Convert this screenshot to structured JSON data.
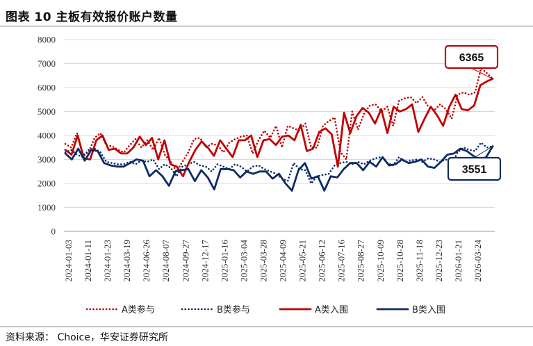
{
  "header": {
    "title": "图表 10 主板有效报价账户数量"
  },
  "footer": {
    "source": "资料来源：  Choice，华安证券研究所"
  },
  "colors": {
    "red": "#c00000",
    "navy": "#0c2a66",
    "grid": "#d9d9d9"
  },
  "chart_data": {
    "type": "line",
    "title": "",
    "xlabel": "",
    "ylabel": "",
    "ylim": [
      0,
      8000
    ],
    "yticks": [
      0,
      1000,
      2000,
      3000,
      4000,
      5000,
      6000,
      7000,
      8000
    ],
    "grid": "horizontal",
    "legend_position": "bottom",
    "xtick_labels": [
      "2024-01-03",
      "2024-01-11",
      "2024-01-23",
      "2024-03-19",
      "2024-06-26",
      "2024-08-07",
      "2024-09-27",
      "2024-12-17",
      "2025-01-16",
      "2025-03-04",
      "2025-03-28",
      "2025-04-09",
      "2025-05-21",
      "2025-06-12",
      "2025-07-16",
      "2025-08-27",
      "2025-10-09",
      "2025-10-28",
      "2025-11-18",
      "2025-12-23",
      "2026-01-21",
      "2026-03-24"
    ],
    "series": [
      {
        "name": "A类参与",
        "style": "dotted",
        "color": "#c00000",
        "values": [
          3650,
          3500,
          4100,
          3200,
          3300,
          3900,
          4100,
          3600,
          3550,
          3400,
          3300,
          3600,
          3850,
          3500,
          3800,
          3400,
          3900,
          3200,
          2900,
          2500,
          2900,
          3300,
          3850,
          3900,
          3500,
          3650,
          3600,
          3300,
          3700,
          3850,
          3950,
          4000,
          3250,
          3800,
          4200,
          3900,
          4400,
          3500,
          4400,
          4300,
          4200,
          4500,
          3500,
          3500,
          4400,
          4600,
          4750,
          3300,
          3000,
          5000,
          4250,
          4900,
          5250,
          5300,
          5000,
          5200,
          4400,
          5450,
          5550,
          5600,
          5350,
          5600,
          5200,
          5050,
          5300,
          5100,
          4700,
          5700,
          5800,
          5700,
          5800,
          6800,
          6600,
          6365
        ]
      },
      {
        "name": "B类参与",
        "style": "dotted",
        "color": "#0c2a66",
        "values": [
          3300,
          3400,
          3200,
          3100,
          3400,
          3450,
          3300,
          2900,
          2850,
          2800,
          2800,
          2900,
          2800,
          2950,
          2900,
          3000,
          2600,
          2800,
          2650,
          2300,
          2700,
          2800,
          2900,
          2750,
          2700,
          2500,
          2800,
          2700,
          2600,
          2800,
          2700,
          2500,
          2700,
          2750,
          2600,
          2500,
          2400,
          2200,
          2100,
          2850,
          2600,
          2550,
          2000,
          2300,
          2350,
          2400,
          2750,
          2850,
          2900,
          2800,
          2900,
          2800,
          2950,
          3050,
          3100,
          2850,
          2750,
          3100,
          2900,
          2950,
          3000,
          2900,
          3050,
          3000,
          2900,
          3000,
          2800,
          3300,
          3500,
          3400,
          3350,
          3700,
          3500,
          3551
        ]
      },
      {
        "name": "A类入围",
        "style": "solid",
        "color": "#c00000",
        "values": [
          3400,
          3200,
          4000,
          3050,
          3000,
          3800,
          4000,
          3400,
          3450,
          3250,
          3250,
          3500,
          3950,
          3600,
          3900,
          3000,
          3800,
          2800,
          2700,
          2300,
          2900,
          3400,
          3750,
          3500,
          3150,
          3800,
          3450,
          3100,
          3800,
          3800,
          4000,
          3100,
          3800,
          3850,
          3600,
          3950,
          4000,
          3800,
          4450,
          3350,
          3450,
          4150,
          4300,
          4050,
          2700,
          4950,
          4100,
          4800,
          5150,
          4950,
          4500,
          5100,
          4100,
          5200,
          5000,
          5100,
          5300,
          4150,
          4700,
          5200,
          4850,
          4400,
          5200,
          5700,
          5100,
          5050,
          5250,
          6100,
          6250,
          6365
        ]
      },
      {
        "name": "B类入围",
        "style": "solid",
        "color": "#0c2a66",
        "values": [
          3250,
          3000,
          3450,
          2950,
          3400,
          3350,
          2850,
          2750,
          2700,
          2700,
          2850,
          3000,
          2950,
          2300,
          2550,
          2300,
          1900,
          2500,
          2550,
          2600,
          2100,
          2550,
          2250,
          1750,
          2600,
          2600,
          2550,
          2250,
          2500,
          2400,
          2500,
          2500,
          2200,
          2400,
          2000,
          1700,
          2550,
          2850,
          2200,
          2300,
          1700,
          2300,
          2250,
          2600,
          2850,
          2850,
          2550,
          2900,
          2700,
          3100,
          2750,
          2800,
          3000,
          2850,
          2900,
          3000,
          2700,
          2650,
          2900,
          3200,
          3250,
          3450,
          3350,
          3150,
          3000,
          3100,
          3551
        ]
      }
    ],
    "annotations": [
      {
        "text": "6365",
        "series": "A类入围",
        "color": "#c00000"
      },
      {
        "text": "3551",
        "series": "B类入围",
        "color": "#0c2a66"
      }
    ]
  }
}
